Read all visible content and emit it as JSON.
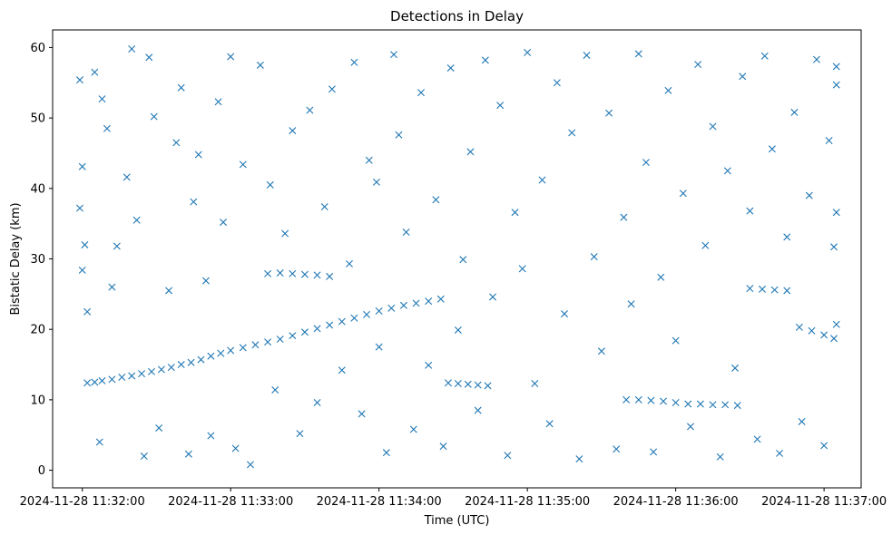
{
  "chart_data": {
    "type": "scatter",
    "title": "Detections in Delay",
    "xlabel": "Time (UTC)",
    "ylabel": "Bistatic Delay (km)",
    "xlim": [
      "2024-11-28 11:31:48",
      "2024-11-28 11:37:15"
    ],
    "ylim": [
      -2.5,
      62.5
    ],
    "xticks": [
      {
        "value": "2024-11-28 11:32:00",
        "label": "2024-11-28 11:32:00"
      },
      {
        "value": "2024-11-28 11:33:00",
        "label": "2024-11-28 11:33:00"
      },
      {
        "value": "2024-11-28 11:34:00",
        "label": "2024-11-28 11:34:00"
      },
      {
        "value": "2024-11-28 11:35:00",
        "label": "2024-11-28 11:35:00"
      },
      {
        "value": "2024-11-28 11:36:00",
        "label": "2024-11-28 11:36:00"
      },
      {
        "value": "2024-11-28 11:37:00",
        "label": "2024-11-28 11:37:00"
      }
    ],
    "yticks": [
      0,
      10,
      20,
      30,
      40,
      50,
      60
    ],
    "marker": "x",
    "color": "#1f77b4",
    "grid": false,
    "legend": "none",
    "series": [
      {
        "points": [
          [
            "2024-11-28 11:32:02",
            12.4
          ],
          [
            "2024-11-28 11:32:05",
            12.5
          ],
          [
            "2024-11-28 11:32:08",
            12.7
          ],
          [
            "2024-11-28 11:32:12",
            12.9
          ],
          [
            "2024-11-28 11:32:16",
            13.2
          ],
          [
            "2024-11-28 11:32:20",
            13.4
          ],
          [
            "2024-11-28 11:32:24",
            13.7
          ],
          [
            "2024-11-28 11:32:28",
            14.0
          ],
          [
            "2024-11-28 11:32:32",
            14.3
          ],
          [
            "2024-11-28 11:32:36",
            14.6
          ],
          [
            "2024-11-28 11:32:40",
            15.0
          ],
          [
            "2024-11-28 11:32:44",
            15.3
          ],
          [
            "2024-11-28 11:32:48",
            15.7
          ],
          [
            "2024-11-28 11:32:52",
            16.2
          ],
          [
            "2024-11-28 11:32:56",
            16.6
          ],
          [
            "2024-11-28 11:33:00",
            17.0
          ],
          [
            "2024-11-28 11:33:05",
            17.4
          ],
          [
            "2024-11-28 11:33:10",
            17.8
          ],
          [
            "2024-11-28 11:33:15",
            18.2
          ],
          [
            "2024-11-28 11:33:20",
            18.6
          ],
          [
            "2024-11-28 11:33:25",
            19.1
          ],
          [
            "2024-11-28 11:33:30",
            19.6
          ],
          [
            "2024-11-28 11:33:35",
            20.1
          ],
          [
            "2024-11-28 11:33:40",
            20.6
          ],
          [
            "2024-11-28 11:33:45",
            21.1
          ],
          [
            "2024-11-28 11:33:50",
            21.6
          ],
          [
            "2024-11-28 11:33:55",
            22.1
          ],
          [
            "2024-11-28 11:34:00",
            22.6
          ],
          [
            "2024-11-28 11:34:05",
            23.0
          ],
          [
            "2024-11-28 11:34:10",
            23.4
          ],
          [
            "2024-11-28 11:34:15",
            23.7
          ],
          [
            "2024-11-28 11:34:20",
            24.0
          ],
          [
            "2024-11-28 11:34:25",
            24.3
          ],
          [
            "2024-11-28 11:33:15",
            27.9
          ],
          [
            "2024-11-28 11:33:20",
            28.0
          ],
          [
            "2024-11-28 11:33:25",
            27.9
          ],
          [
            "2024-11-28 11:33:30",
            27.8
          ],
          [
            "2024-11-28 11:33:35",
            27.7
          ],
          [
            "2024-11-28 11:33:40",
            27.5
          ],
          [
            "2024-11-28 11:34:28",
            12.4
          ],
          [
            "2024-11-28 11:34:32",
            12.3
          ],
          [
            "2024-11-28 11:34:36",
            12.2
          ],
          [
            "2024-11-28 11:34:40",
            12.1
          ],
          [
            "2024-11-28 11:34:44",
            12.0
          ],
          [
            "2024-11-28 11:35:40",
            10.0
          ],
          [
            "2024-11-28 11:35:45",
            10.0
          ],
          [
            "2024-11-28 11:35:50",
            9.9
          ],
          [
            "2024-11-28 11:35:55",
            9.8
          ],
          [
            "2024-11-28 11:36:00",
            9.6
          ],
          [
            "2024-11-28 11:36:05",
            9.4
          ],
          [
            "2024-11-28 11:36:10",
            9.4
          ],
          [
            "2024-11-28 11:36:15",
            9.3
          ],
          [
            "2024-11-28 11:36:20",
            9.3
          ],
          [
            "2024-11-28 11:36:25",
            9.2
          ],
          [
            "2024-11-28 11:36:30",
            25.8
          ],
          [
            "2024-11-28 11:36:35",
            25.7
          ],
          [
            "2024-11-28 11:36:40",
            25.6
          ],
          [
            "2024-11-28 11:36:45",
            25.5
          ],
          [
            "2024-11-28 11:36:50",
            20.3
          ],
          [
            "2024-11-28 11:36:55",
            19.8
          ],
          [
            "2024-11-28 11:37:00",
            19.2
          ],
          [
            "2024-11-28 11:37:04",
            18.7
          ],
          [
            "2024-11-28 11:31:59",
            55.4
          ],
          [
            "2024-11-28 11:31:59",
            37.2
          ],
          [
            "2024-11-28 11:32:00",
            43.1
          ],
          [
            "2024-11-28 11:32:01",
            32.0
          ],
          [
            "2024-11-28 11:32:00",
            28.4
          ],
          [
            "2024-11-28 11:32:02",
            22.5
          ],
          [
            "2024-11-28 11:32:05",
            56.5
          ],
          [
            "2024-11-28 11:32:08",
            52.7
          ],
          [
            "2024-11-28 11:32:07",
            4.0
          ],
          [
            "2024-11-28 11:32:10",
            48.5
          ],
          [
            "2024-11-28 11:32:12",
            26.0
          ],
          [
            "2024-11-28 11:32:14",
            31.8
          ],
          [
            "2024-11-28 11:32:18",
            41.6
          ],
          [
            "2024-11-28 11:32:20",
            59.8
          ],
          [
            "2024-11-28 11:32:22",
            35.5
          ],
          [
            "2024-11-28 11:32:25",
            2.0
          ],
          [
            "2024-11-28 11:32:27",
            58.6
          ],
          [
            "2024-11-28 11:32:29",
            50.2
          ],
          [
            "2024-11-28 11:32:31",
            6.0
          ],
          [
            "2024-11-28 11:32:35",
            25.5
          ],
          [
            "2024-11-28 11:32:38",
            46.5
          ],
          [
            "2024-11-28 11:32:40",
            54.3
          ],
          [
            "2024-11-28 11:32:43",
            2.3
          ],
          [
            "2024-11-28 11:32:45",
            38.1
          ],
          [
            "2024-11-28 11:32:47",
            44.8
          ],
          [
            "2024-11-28 11:32:50",
            26.9
          ],
          [
            "2024-11-28 11:32:52",
            4.9
          ],
          [
            "2024-11-28 11:32:55",
            52.3
          ],
          [
            "2024-11-28 11:32:57",
            35.2
          ],
          [
            "2024-11-28 11:33:00",
            58.7
          ],
          [
            "2024-11-28 11:33:02",
            3.1
          ],
          [
            "2024-11-28 11:33:05",
            43.4
          ],
          [
            "2024-11-28 11:33:08",
            0.8
          ],
          [
            "2024-11-28 11:33:12",
            57.5
          ],
          [
            "2024-11-28 11:33:16",
            40.5
          ],
          [
            "2024-11-28 11:33:18",
            11.4
          ],
          [
            "2024-11-28 11:33:22",
            33.6
          ],
          [
            "2024-11-28 11:33:25",
            48.2
          ],
          [
            "2024-11-28 11:33:28",
            5.2
          ],
          [
            "2024-11-28 11:33:32",
            51.1
          ],
          [
            "2024-11-28 11:33:35",
            9.6
          ],
          [
            "2024-11-28 11:33:38",
            37.4
          ],
          [
            "2024-11-28 11:33:41",
            54.1
          ],
          [
            "2024-11-28 11:33:45",
            14.2
          ],
          [
            "2024-11-28 11:33:48",
            29.3
          ],
          [
            "2024-11-28 11:33:50",
            57.9
          ],
          [
            "2024-11-28 11:33:53",
            8.0
          ],
          [
            "2024-11-28 11:33:56",
            44.0
          ],
          [
            "2024-11-28 11:33:59",
            40.9
          ],
          [
            "2024-11-28 11:34:00",
            17.5
          ],
          [
            "2024-11-28 11:34:03",
            2.5
          ],
          [
            "2024-11-28 11:34:06",
            59.0
          ],
          [
            "2024-11-28 11:34:08",
            47.6
          ],
          [
            "2024-11-28 11:34:11",
            33.8
          ],
          [
            "2024-11-28 11:34:14",
            5.8
          ],
          [
            "2024-11-28 11:34:17",
            53.6
          ],
          [
            "2024-11-28 11:34:20",
            14.9
          ],
          [
            "2024-11-28 11:34:23",
            38.4
          ],
          [
            "2024-11-28 11:34:26",
            3.4
          ],
          [
            "2024-11-28 11:34:29",
            57.1
          ],
          [
            "2024-11-28 11:34:32",
            19.9
          ],
          [
            "2024-11-28 11:34:34",
            29.9
          ],
          [
            "2024-11-28 11:34:37",
            45.2
          ],
          [
            "2024-11-28 11:34:40",
            8.5
          ],
          [
            "2024-11-28 11:34:43",
            58.2
          ],
          [
            "2024-11-28 11:34:46",
            24.6
          ],
          [
            "2024-11-28 11:34:49",
            51.8
          ],
          [
            "2024-11-28 11:34:52",
            2.1
          ],
          [
            "2024-11-28 11:34:55",
            36.6
          ],
          [
            "2024-11-28 11:34:58",
            28.6
          ],
          [
            "2024-11-28 11:35:00",
            59.3
          ],
          [
            "2024-11-28 11:35:03",
            12.3
          ],
          [
            "2024-11-28 11:35:06",
            41.2
          ],
          [
            "2024-11-28 11:35:09",
            6.6
          ],
          [
            "2024-11-28 11:35:12",
            55.0
          ],
          [
            "2024-11-28 11:35:15",
            22.2
          ],
          [
            "2024-11-28 11:35:18",
            47.9
          ],
          [
            "2024-11-28 11:35:21",
            1.6
          ],
          [
            "2024-11-28 11:35:24",
            58.9
          ],
          [
            "2024-11-28 11:35:27",
            30.3
          ],
          [
            "2024-11-28 11:35:30",
            16.9
          ],
          [
            "2024-11-28 11:35:33",
            50.7
          ],
          [
            "2024-11-28 11:35:36",
            3.0
          ],
          [
            "2024-11-28 11:35:39",
            35.9
          ],
          [
            "2024-11-28 11:35:42",
            23.6
          ],
          [
            "2024-11-28 11:35:45",
            59.1
          ],
          [
            "2024-11-28 11:35:48",
            43.7
          ],
          [
            "2024-11-28 11:35:51",
            2.6
          ],
          [
            "2024-11-28 11:35:54",
            27.4
          ],
          [
            "2024-11-28 11:35:57",
            53.9
          ],
          [
            "2024-11-28 11:36:00",
            18.4
          ],
          [
            "2024-11-28 11:36:03",
            39.3
          ],
          [
            "2024-11-28 11:36:06",
            6.2
          ],
          [
            "2024-11-28 11:36:09",
            57.6
          ],
          [
            "2024-11-28 11:36:12",
            31.9
          ],
          [
            "2024-11-28 11:36:15",
            48.8
          ],
          [
            "2024-11-28 11:36:18",
            1.9
          ],
          [
            "2024-11-28 11:36:21",
            42.5
          ],
          [
            "2024-11-28 11:36:24",
            14.5
          ],
          [
            "2024-11-28 11:36:27",
            55.9
          ],
          [
            "2024-11-28 11:36:30",
            36.8
          ],
          [
            "2024-11-28 11:36:33",
            4.4
          ],
          [
            "2024-11-28 11:36:36",
            58.8
          ],
          [
            "2024-11-28 11:36:39",
            45.6
          ],
          [
            "2024-11-28 11:36:42",
            2.4
          ],
          [
            "2024-11-28 11:36:45",
            33.1
          ],
          [
            "2024-11-28 11:36:48",
            50.8
          ],
          [
            "2024-11-28 11:36:51",
            6.9
          ],
          [
            "2024-11-28 11:36:54",
            39.0
          ],
          [
            "2024-11-28 11:36:57",
            58.3
          ],
          [
            "2024-11-28 11:37:00",
            3.5
          ],
          [
            "2024-11-28 11:37:02",
            46.8
          ],
          [
            "2024-11-28 11:37:04",
            31.7
          ],
          [
            "2024-11-28 11:37:05",
            57.3
          ],
          [
            "2024-11-28 11:37:05",
            36.6
          ],
          [
            "2024-11-28 11:37:05",
            54.7
          ],
          [
            "2024-11-28 11:37:05",
            20.7
          ]
        ]
      }
    ]
  }
}
